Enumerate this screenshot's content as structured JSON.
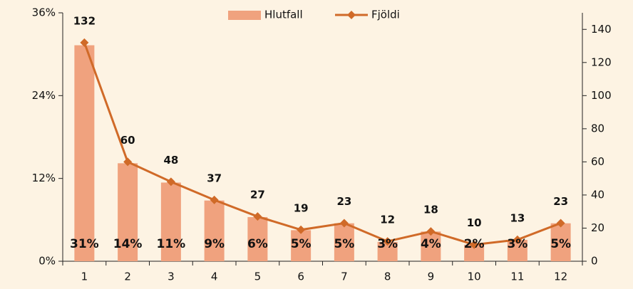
{
  "chart_data": {
    "type": "bar-line",
    "categories": [
      "1",
      "2",
      "3",
      "4",
      "5",
      "6",
      "7",
      "8",
      "9",
      "10",
      "11",
      "12"
    ],
    "series": [
      {
        "name": "Hlutfall",
        "color": "#f0a27e",
        "type": "bar",
        "values": [
          31.3,
          14.2,
          11.4,
          8.8,
          6.4,
          4.5,
          5.5,
          2.8,
          4.3,
          2.4,
          3.1,
          5.5
        ],
        "value_labels": [
          "31%",
          "14%",
          "11%",
          "9%",
          "6%",
          "5%",
          "5%",
          "3%",
          "4%",
          "2%",
          "3%",
          "5%"
        ]
      },
      {
        "name": "Fjöldi",
        "color": "#d06a28",
        "type": "line",
        "axis": "y2",
        "values": [
          132,
          60,
          48,
          37,
          27,
          19,
          23,
          12,
          18,
          10,
          13,
          23
        ]
      }
    ],
    "ylim": [
      0,
      36
    ],
    "yticks": [
      {
        "value": 0,
        "label": "0%"
      },
      {
        "value": 12,
        "label": "12%"
      },
      {
        "value": 24,
        "label": "24%"
      },
      {
        "value": 36,
        "label": "36%"
      }
    ],
    "y2lim": [
      0,
      150
    ],
    "y2ticks": [
      0,
      20,
      40,
      60,
      80,
      100,
      120,
      140
    ],
    "legend": "top"
  }
}
